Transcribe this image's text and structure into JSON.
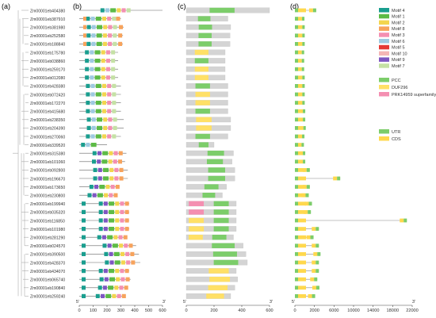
{
  "panels": [
    {
      "id": "a",
      "label": "(a)"
    },
    {
      "id": "b",
      "label": "(b)"
    },
    {
      "id": "c",
      "label": "(c)"
    },
    {
      "id": "d",
      "label": "(d)"
    }
  ],
  "genes": [
    "Zm00001eb404380",
    "Zm00001eb387910",
    "Zm00001eb381980",
    "Zm00001eb252580",
    "Zm00001eb188840",
    "Zm00001eb175780",
    "Zm00001eb038860",
    "Zm00001eb259170",
    "Zm00001eb012080",
    "Zm00001eb428380",
    "Zm00001eb072420",
    "Zm00001eb172270",
    "Zm00001eb415680",
    "Zm00001eb238350",
    "Zm00001eb204390",
    "Zm00001eb270060",
    "Zm00001eb339520",
    "Zm00001eb315380",
    "Zm00001eb101060",
    "Zm00001eb092800",
    "Zm00001eb196670",
    "Zm00001eb173650",
    "Zm00001eb230800",
    "Zm00001eb199940",
    "Zm00001eb035320",
    "Zm00001eb116850",
    "Zm00001eb101980",
    "Zm00001eb281290",
    "Zm00001eb024570",
    "Zm00001eb390500",
    "Zm00001eb428370",
    "Zm00001eb434070",
    "Zm00001eb065740",
    "Zm00001eb190840",
    "Zm00001eb259240"
  ],
  "legend_motifs": [
    {
      "label": "Motif 4",
      "color": "#1a9e8f"
    },
    {
      "label": "Motif 1",
      "color": "#5dbb46"
    },
    {
      "label": "Motif 2",
      "color": "#f3d54e"
    },
    {
      "label": "Motif 8",
      "color": "#f7a35c"
    },
    {
      "label": "Motif 3",
      "color": "#f48fb1"
    },
    {
      "label": "Motif 6",
      "color": "#9ecae1"
    },
    {
      "label": "Motif 5",
      "color": "#e53935"
    },
    {
      "label": "Motif 10",
      "color": "#f4b6b6"
    },
    {
      "label": "Motif 9",
      "color": "#7e57c2"
    },
    {
      "label": "Motif 7",
      "color": "#c5e1a5"
    }
  ],
  "legend_domains": [
    {
      "label": "PCC",
      "color": "#7ccd6a"
    },
    {
      "label": "DUF296",
      "color": "#ffe066"
    },
    {
      "label": "PRK14959 superfamily",
      "color": "#f48fb1"
    }
  ],
  "legend_structure": [
    {
      "label": "UTR",
      "color": "#7ccd6a"
    },
    {
      "label": "CDS",
      "color": "#ffd84d"
    }
  ],
  "axis_b": {
    "ticks": [
      "0",
      "100",
      "200",
      "300",
      "400",
      "500",
      "600"
    ],
    "start": "5'",
    "end": "3'"
  },
  "axis_c": {
    "ticks": [
      "0",
      "200",
      "400",
      "600"
    ],
    "start": "5'",
    "end": "3'"
  },
  "axis_d": {
    "ticks": [
      "0",
      "2000",
      "6000",
      "10000",
      "14000",
      "18000",
      "22000"
    ],
    "start": "5'",
    "end": "3'"
  }
}
